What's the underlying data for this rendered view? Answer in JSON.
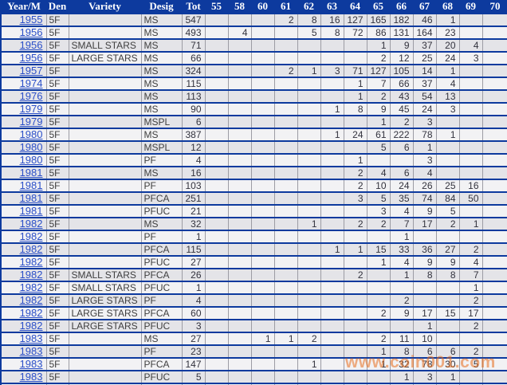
{
  "table": {
    "columns": [
      "Year/M",
      "Den",
      "Variety",
      "Desig",
      "Tot",
      "55",
      "58",
      "60",
      "61",
      "62",
      "63",
      "64",
      "65",
      "66",
      "67",
      "68",
      "69",
      "70"
    ],
    "grade_keys": [
      "55",
      "58",
      "60",
      "61",
      "62",
      "63",
      "64",
      "65",
      "66",
      "67",
      "68",
      "69",
      "70"
    ],
    "rows": [
      {
        "year": "1955",
        "den": "5F",
        "variety": "",
        "desig": "MS",
        "tot": "547",
        "grades": {
          "61": "2",
          "62": "8",
          "63": "16",
          "64": "127",
          "65": "165",
          "66": "182",
          "67": "46",
          "68": "1"
        }
      },
      {
        "year": "1956",
        "den": "5F",
        "variety": "",
        "desig": "MS",
        "tot": "493",
        "grades": {
          "58": "4",
          "62": "5",
          "63": "8",
          "64": "72",
          "65": "86",
          "66": "131",
          "67": "164",
          "68": "23"
        }
      },
      {
        "year": "1956",
        "den": "5F",
        "variety": "SMALL STARS",
        "desig": "MS",
        "tot": "71",
        "grades": {
          "65": "1",
          "66": "9",
          "67": "37",
          "68": "20",
          "69": "4"
        }
      },
      {
        "year": "1956",
        "den": "5F",
        "variety": "LARGE STARS",
        "desig": "MS",
        "tot": "66",
        "grades": {
          "65": "2",
          "66": "12",
          "67": "25",
          "68": "24",
          "69": "3"
        }
      },
      {
        "year": "1957",
        "den": "5F",
        "variety": "",
        "desig": "MS",
        "tot": "324",
        "grades": {
          "61": "2",
          "62": "1",
          "63": "3",
          "64": "71",
          "65": "127",
          "66": "105",
          "67": "14",
          "68": "1"
        }
      },
      {
        "year": "1974",
        "den": "5F",
        "variety": "",
        "desig": "MS",
        "tot": "115",
        "grades": {
          "64": "1",
          "65": "7",
          "66": "66",
          "67": "37",
          "68": "4"
        }
      },
      {
        "year": "1976",
        "den": "5F",
        "variety": "",
        "desig": "MS",
        "tot": "113",
        "grades": {
          "64": "1",
          "65": "2",
          "66": "43",
          "67": "54",
          "68": "13"
        }
      },
      {
        "year": "1979",
        "den": "5F",
        "variety": "",
        "desig": "MS",
        "tot": "90",
        "grades": {
          "63": "1",
          "64": "8",
          "65": "9",
          "66": "45",
          "67": "24",
          "68": "3"
        }
      },
      {
        "year": "1979",
        "den": "5F",
        "variety": "",
        "desig": "MSPL",
        "tot": "6",
        "grades": {
          "65": "1",
          "66": "2",
          "67": "3"
        }
      },
      {
        "year": "1980",
        "den": "5F",
        "variety": "",
        "desig": "MS",
        "tot": "387",
        "grades": {
          "63": "1",
          "64": "24",
          "65": "61",
          "66": "222",
          "67": "78",
          "68": "1"
        }
      },
      {
        "year": "1980",
        "den": "5F",
        "variety": "",
        "desig": "MSPL",
        "tot": "12",
        "grades": {
          "65": "5",
          "66": "6",
          "67": "1"
        }
      },
      {
        "year": "1980",
        "den": "5F",
        "variety": "",
        "desig": "PF",
        "tot": "4",
        "grades": {
          "64": "1",
          "67": "3"
        }
      },
      {
        "year": "1981",
        "den": "5F",
        "variety": "",
        "desig": "MS",
        "tot": "16",
        "grades": {
          "64": "2",
          "65": "4",
          "66": "6",
          "67": "4"
        }
      },
      {
        "year": "1981",
        "den": "5F",
        "variety": "",
        "desig": "PF",
        "tot": "103",
        "grades": {
          "64": "2",
          "65": "10",
          "66": "24",
          "67": "26",
          "68": "25",
          "69": "16"
        }
      },
      {
        "year": "1981",
        "den": "5F",
        "variety": "",
        "desig": "PFCA",
        "tot": "251",
        "grades": {
          "64": "3",
          "65": "5",
          "66": "35",
          "67": "74",
          "68": "84",
          "69": "50"
        }
      },
      {
        "year": "1981",
        "den": "5F",
        "variety": "",
        "desig": "PFUC",
        "tot": "21",
        "grades": {
          "65": "3",
          "66": "4",
          "67": "9",
          "68": "5"
        }
      },
      {
        "year": "1982",
        "den": "5F",
        "variety": "",
        "desig": "MS",
        "tot": "32",
        "grades": {
          "62": "1",
          "64": "2",
          "65": "2",
          "66": "7",
          "67": "17",
          "68": "2",
          "69": "1"
        }
      },
      {
        "year": "1982",
        "den": "5F",
        "variety": "",
        "desig": "PF",
        "tot": "1",
        "grades": {
          "66": "1"
        }
      },
      {
        "year": "1982",
        "den": "5F",
        "variety": "",
        "desig": "PFCA",
        "tot": "115",
        "grades": {
          "63": "1",
          "64": "1",
          "65": "15",
          "66": "33",
          "67": "36",
          "68": "27",
          "69": "2"
        }
      },
      {
        "year": "1982",
        "den": "5F",
        "variety": "",
        "desig": "PFUC",
        "tot": "27",
        "grades": {
          "65": "1",
          "66": "4",
          "67": "9",
          "68": "9",
          "69": "4"
        }
      },
      {
        "year": "1982",
        "den": "5F",
        "variety": "SMALL STARS",
        "desig": "PFCA",
        "tot": "26",
        "grades": {
          "64": "2",
          "66": "1",
          "67": "8",
          "68": "8",
          "69": "7"
        }
      },
      {
        "year": "1982",
        "den": "5F",
        "variety": "SMALL STARS",
        "desig": "PFUC",
        "tot": "1",
        "grades": {
          "69": "1"
        }
      },
      {
        "year": "1982",
        "den": "5F",
        "variety": "LARGE STARS",
        "desig": "PF",
        "tot": "4",
        "grades": {
          "66": "2",
          "69": "2"
        }
      },
      {
        "year": "1982",
        "den": "5F",
        "variety": "LARGE STARS",
        "desig": "PFCA",
        "tot": "60",
        "grades": {
          "65": "2",
          "66": "9",
          "67": "17",
          "68": "15",
          "69": "17"
        }
      },
      {
        "year": "1982",
        "den": "5F",
        "variety": "LARGE STARS",
        "desig": "PFUC",
        "tot": "3",
        "grades": {
          "67": "1",
          "69": "2"
        }
      },
      {
        "year": "1983",
        "den": "5F",
        "variety": "",
        "desig": "MS",
        "tot": "27",
        "grades": {
          "60": "1",
          "61": "1",
          "62": "2",
          "65": "2",
          "66": "11",
          "67": "10"
        }
      },
      {
        "year": "1983",
        "den": "5F",
        "variety": "",
        "desig": "PF",
        "tot": "23",
        "grades": {
          "65": "1",
          "66": "8",
          "67": "6",
          "68": "6",
          "69": "2"
        }
      },
      {
        "year": "1983",
        "den": "5F",
        "variety": "",
        "desig": "PFCA",
        "tot": "147",
        "grades": {
          "62": "1",
          "65": "1",
          "66": "32",
          "67": "78",
          "68": "30",
          "69": "5"
        }
      },
      {
        "year": "1983",
        "den": "5F",
        "variety": "",
        "desig": "PFUC",
        "tot": "5",
        "grades": {
          "66": "1",
          "67": "3",
          "68": "1"
        }
      }
    ]
  },
  "watermark": {
    "text": "www.coin001.com",
    "color": "#E86E1E"
  },
  "colors": {
    "header_bg": "#0D3A9E",
    "row_dark": "#E4E4E8",
    "row_light": "#F2F2F4",
    "grid_line": "#9C9CA4",
    "link": "#2B4FC8"
  }
}
